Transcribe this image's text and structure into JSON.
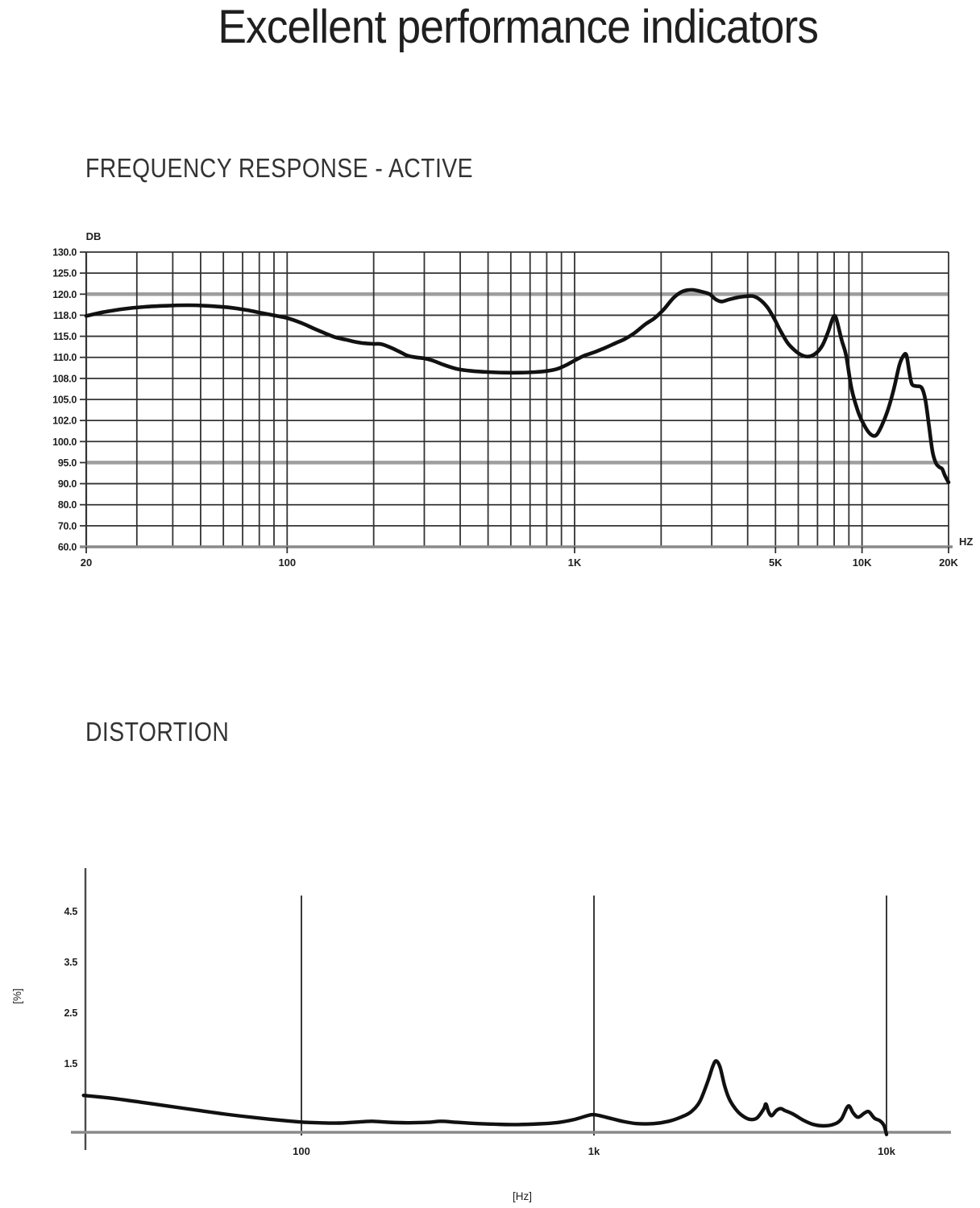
{
  "page": {
    "title": "Excellent performance indicators"
  },
  "colors": {
    "text": "#1e1e1e",
    "curve": "#111111",
    "grid": "#333333",
    "grid_emphasis": "#9e9e9e",
    "axis_baseline": "#8a8a8a"
  },
  "chart_data": [
    {
      "id": "frequency-response",
      "type": "line",
      "title": "FREQUENCY RESPONSE - ACTIVE",
      "xlabel": "HZ",
      "ylabel": "DB",
      "x_scale": "log",
      "xlim_hz": [
        20,
        20000
      ],
      "grid": true,
      "x_ticks": [
        {
          "label": "20",
          "value": 20
        },
        {
          "label": "100",
          "value": 100
        },
        {
          "label": "1K",
          "value": 1000
        },
        {
          "label": "5K",
          "value": 5000
        },
        {
          "label": "10K",
          "value": 10000
        },
        {
          "label": "20K",
          "value": 20000
        }
      ],
      "y_ticks": [
        {
          "label": "130.0",
          "value": 130
        },
        {
          "label": "125.0",
          "value": 125
        },
        {
          "label": "120.0",
          "value": 120
        },
        {
          "label": "118.0",
          "value": 118
        },
        {
          "label": "115.0",
          "value": 115
        },
        {
          "label": "110.0",
          "value": 110
        },
        {
          "label": "108.0",
          "value": 108
        },
        {
          "label": "105.0",
          "value": 105
        },
        {
          "label": "102.0",
          "value": 102
        },
        {
          "label": "100.0",
          "value": 100
        },
        {
          "label": "95.0",
          "value": 95
        },
        {
          "label": "90.0",
          "value": 90
        },
        {
          "label": "80.0",
          "value": 80
        },
        {
          "label": "70.0",
          "value": 70
        },
        {
          "label": "60.0",
          "value": 60
        }
      ],
      "emphasized_y_values": [
        120,
        95
      ],
      "minor_x_gridlines_hz": [
        30,
        40,
        50,
        60,
        70,
        80,
        90,
        100,
        200,
        300,
        400,
        500,
        600,
        700,
        800,
        900,
        1000,
        2000,
        3000,
        4000,
        5000,
        6000,
        7000,
        8000,
        9000,
        10000,
        20000
      ],
      "series": [
        {
          "name": "frequency-response-active",
          "points": [
            [
              20,
              117.9
            ],
            [
              23,
              118.3
            ],
            [
              27,
              118.6
            ],
            [
              32,
              118.8
            ],
            [
              38,
              118.9
            ],
            [
              45,
              118.95
            ],
            [
              52,
              118.9
            ],
            [
              62,
              118.75
            ],
            [
              72,
              118.5
            ],
            [
              82,
              118.2
            ],
            [
              92,
              117.9
            ],
            [
              100,
              117.6
            ],
            [
              112,
              116.9
            ],
            [
              124,
              116.1
            ],
            [
              136,
              115.4
            ],
            [
              148,
              114.7
            ],
            [
              160,
              114.2
            ],
            [
              172,
              113.7
            ],
            [
              185,
              113.35
            ],
            [
              200,
              113.2
            ],
            [
              212,
              113.15
            ],
            [
              228,
              112.4
            ],
            [
              245,
              111.4
            ],
            [
              262,
              110.4
            ],
            [
              280,
              110.0
            ],
            [
              300,
              109.9
            ],
            [
              320,
              109.7
            ],
            [
              350,
              109.3
            ],
            [
              390,
              108.9
            ],
            [
              440,
              108.7
            ],
            [
              500,
              108.6
            ],
            [
              570,
              108.55
            ],
            [
              650,
              108.55
            ],
            [
              730,
              108.6
            ],
            [
              800,
              108.7
            ],
            [
              870,
              108.9
            ],
            [
              940,
              109.3
            ],
            [
              1000,
              109.7
            ],
            [
              1080,
              110.4
            ],
            [
              1170,
              111.2
            ],
            [
              1270,
              112.2
            ],
            [
              1380,
              113.3
            ],
            [
              1500,
              114.4
            ],
            [
              1620,
              115.5
            ],
            [
              1760,
              116.7
            ],
            [
              1900,
              117.6
            ],
            [
              2050,
              118.6
            ],
            [
              2200,
              119.6
            ],
            [
              2350,
              120.5
            ],
            [
              2500,
              121.0
            ],
            [
              2650,
              120.9
            ],
            [
              2800,
              120.5
            ],
            [
              2950,
              120.0
            ],
            [
              3100,
              119.5
            ],
            [
              3250,
              119.3
            ],
            [
              3450,
              119.5
            ],
            [
              3700,
              119.7
            ],
            [
              3950,
              119.8
            ],
            [
              4200,
              119.8
            ],
            [
              4450,
              119.4
            ],
            [
              4700,
              118.7
            ],
            [
              4950,
              117.5
            ],
            [
              5200,
              115.8
            ],
            [
              5500,
              113.5
            ],
            [
              5800,
              111.8
            ],
            [
              6100,
              110.7
            ],
            [
              6400,
              110.2
            ],
            [
              6700,
              110.4
            ],
            [
              7000,
              111.3
            ],
            [
              7300,
              113.0
            ],
            [
              7600,
              115.5
            ],
            [
              7900,
              117.5
            ],
            [
              8050,
              117.9
            ],
            [
              8200,
              117.0
            ],
            [
              8500,
              114.0
            ],
            [
              8800,
              110.5
            ],
            [
              9200,
              106.5
            ],
            [
              9700,
              103.2
            ],
            [
              10200,
              101.5
            ],
            [
              10700,
              100.7
            ],
            [
              11200,
              100.6
            ],
            [
              11700,
              101.5
            ],
            [
              12300,
              103.5
            ],
            [
              12900,
              106.5
            ],
            [
              13500,
              109.3
            ],
            [
              14000,
              110.6
            ],
            [
              14300,
              110.3
            ],
            [
              14600,
              108.6
            ],
            [
              14900,
              107.2
            ],
            [
              15400,
              106.9
            ],
            [
              16100,
              106.7
            ],
            [
              16600,
              105.0
            ],
            [
              17100,
              101.5
            ],
            [
              17600,
              97.5
            ],
            [
              18100,
              94.8
            ],
            [
              18600,
              93.9
            ],
            [
              19000,
              93.5
            ],
            [
              19400,
              92.0
            ],
            [
              20000,
              90.3
            ]
          ]
        }
      ]
    },
    {
      "id": "distortion",
      "type": "line",
      "title": "DISTORTION",
      "xlabel": "[Hz]",
      "ylabel": "[%]",
      "x_scale": "log",
      "xlim_hz": [
        18,
        16600
      ],
      "ylim_percent": [
        0,
        5.5
      ],
      "grid": false,
      "x_ticks": [
        {
          "label": "100",
          "value": 100
        },
        {
          "label": "1k",
          "value": 1000
        },
        {
          "label": "10k",
          "value": 10000
        }
      ],
      "y_ticks": [
        {
          "label": "1.5",
          "value": 1.5
        },
        {
          "label": "2.5",
          "value": 2.5
        },
        {
          "label": "3.5",
          "value": 3.5
        },
        {
          "label": "4.5",
          "value": 4.5
        }
      ],
      "series": [
        {
          "name": "distortion-thd",
          "points": [
            [
              18,
              0.87
            ],
            [
              22,
              0.82
            ],
            [
              28,
              0.74
            ],
            [
              35,
              0.66
            ],
            [
              45,
              0.57
            ],
            [
              55,
              0.5
            ],
            [
              70,
              0.43
            ],
            [
              85,
              0.38
            ],
            [
              100,
              0.345
            ],
            [
              115,
              0.33
            ],
            [
              135,
              0.325
            ],
            [
              160,
              0.35
            ],
            [
              175,
              0.36
            ],
            [
              200,
              0.34
            ],
            [
              230,
              0.33
            ],
            [
              270,
              0.34
            ],
            [
              300,
              0.36
            ],
            [
              340,
              0.34
            ],
            [
              400,
              0.315
            ],
            [
              470,
              0.3
            ],
            [
              550,
              0.295
            ],
            [
              650,
              0.31
            ],
            [
              750,
              0.335
            ],
            [
              850,
              0.39
            ],
            [
              950,
              0.47
            ],
            [
              1000,
              0.49
            ],
            [
              1100,
              0.44
            ],
            [
              1250,
              0.36
            ],
            [
              1400,
              0.315
            ],
            [
              1600,
              0.315
            ],
            [
              1800,
              0.36
            ],
            [
              2000,
              0.45
            ],
            [
              2150,
              0.55
            ],
            [
              2300,
              0.75
            ],
            [
              2450,
              1.15
            ],
            [
              2550,
              1.45
            ],
            [
              2620,
              1.55
            ],
            [
              2700,
              1.42
            ],
            [
              2800,
              1.05
            ],
            [
              2900,
              0.8
            ],
            [
              3050,
              0.6
            ],
            [
              3200,
              0.48
            ],
            [
              3400,
              0.4
            ],
            [
              3600,
              0.42
            ],
            [
              3800,
              0.6
            ],
            [
              3870,
              0.7
            ],
            [
              3950,
              0.55
            ],
            [
              4050,
              0.47
            ],
            [
              4200,
              0.57
            ],
            [
              4350,
              0.61
            ],
            [
              4500,
              0.57
            ],
            [
              4800,
              0.5
            ],
            [
              5200,
              0.38
            ],
            [
              5600,
              0.3
            ],
            [
              6100,
              0.27
            ],
            [
              6600,
              0.3
            ],
            [
              7000,
              0.4
            ],
            [
              7400,
              0.66
            ],
            [
              7700,
              0.52
            ],
            [
              8000,
              0.44
            ],
            [
              8400,
              0.52
            ],
            [
              8700,
              0.55
            ],
            [
              9100,
              0.42
            ],
            [
              9500,
              0.37
            ],
            [
              9800,
              0.28
            ],
            [
              10000,
              0.1
            ]
          ]
        }
      ]
    }
  ]
}
